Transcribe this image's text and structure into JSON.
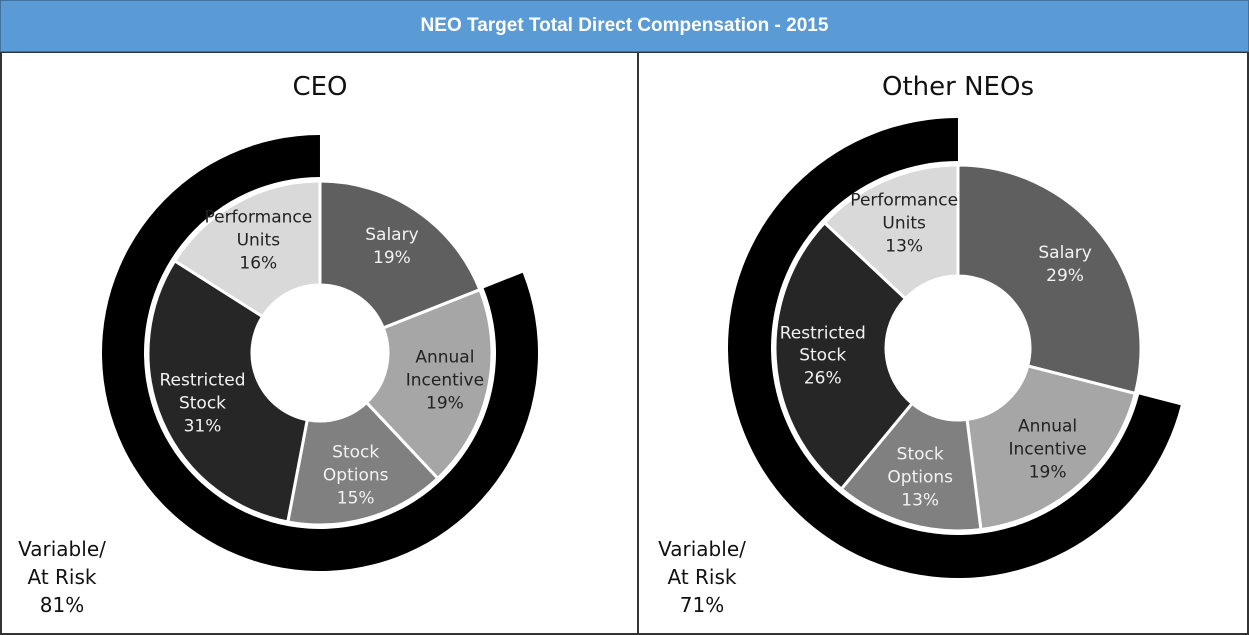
{
  "header": {
    "title": "NEO Target Total Direct Compensation - 2015"
  },
  "chart_data": [
    {
      "type": "donut",
      "title": "CEO",
      "categories": [
        "Salary",
        "Annual Incentive",
        "Stock Options",
        "Restricted Stock",
        "Performance Units"
      ],
      "values": [
        19,
        19,
        15,
        31,
        16
      ],
      "value_labels": [
        "19%",
        "19%",
        "15%",
        "31%",
        "16%"
      ],
      "colors": [
        "#5f5f5f",
        "#a6a6a6",
        "#808080",
        "#262626",
        "#d9d9d9"
      ],
      "outer_ring": {
        "name": "Variable/ At Risk",
        "value": 81,
        "value_label": "81%",
        "color": "#000000"
      }
    },
    {
      "type": "donut",
      "title": "Other NEOs",
      "categories": [
        "Salary",
        "Annual Incentive",
        "Stock Options",
        "Restricted Stock",
        "Performance Units"
      ],
      "values": [
        29,
        19,
        13,
        26,
        13
      ],
      "value_labels": [
        "29%",
        "19%",
        "13%",
        "26%",
        "13%"
      ],
      "colors": [
        "#5f5f5f",
        "#a6a6a6",
        "#808080",
        "#262626",
        "#d9d9d9"
      ],
      "outer_ring": {
        "name": "Variable/ At Risk",
        "value": 71,
        "value_label": "71%",
        "color": "#000000"
      }
    }
  ]
}
